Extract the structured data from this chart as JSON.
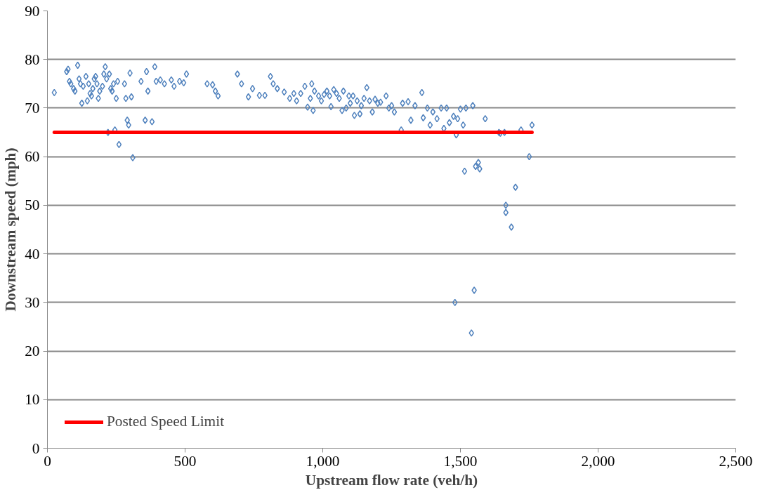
{
  "chart_data": {
    "type": "scatter",
    "xlabel": "Upstream flow rate (veh/h)",
    "ylabel": "Downstream speed (mph)",
    "xlim": [
      0,
      2500
    ],
    "ylim": [
      0,
      90
    ],
    "xticks": [
      0,
      500,
      {
        "value": 1000,
        "label": "1,000"
      },
      {
        "value": 1500,
        "label": "1,500"
      },
      {
        "value": 2000,
        "label": "2,000"
      },
      {
        "value": 2500,
        "label": "2,500"
      }
    ],
    "yticks": [
      0,
      10,
      20,
      30,
      40,
      50,
      60,
      70,
      80,
      90
    ],
    "grid": "y",
    "legend": "bottom left",
    "series": [
      {
        "marker": "diamond",
        "color": "#4f81bd",
        "x": [
          25,
          70,
          75,
          80,
          85,
          95,
          100,
          110,
          115,
          120,
          125,
          130,
          140,
          145,
          150,
          155,
          160,
          165,
          170,
          175,
          180,
          185,
          190,
          200,
          205,
          210,
          215,
          220,
          225,
          230,
          235,
          240,
          245,
          250,
          255,
          260,
          280,
          285,
          290,
          295,
          300,
          305,
          310,
          340,
          355,
          360,
          365,
          380,
          390,
          395,
          410,
          425,
          450,
          460,
          480,
          495,
          505,
          580,
          600,
          610,
          620,
          690,
          705,
          730,
          745,
          770,
          790,
          810,
          820,
          835,
          860,
          880,
          895,
          905,
          920,
          935,
          945,
          955,
          960,
          965,
          970,
          985,
          995,
          1005,
          1015,
          1025,
          1030,
          1040,
          1050,
          1060,
          1070,
          1075,
          1085,
          1095,
          1100,
          1110,
          1115,
          1125,
          1135,
          1140,
          1150,
          1160,
          1170,
          1180,
          1190,
          1200,
          1210,
          1230,
          1240,
          1250,
          1260,
          1285,
          1290,
          1310,
          1320,
          1335,
          1360,
          1365,
          1380,
          1390,
          1400,
          1415,
          1430,
          1440,
          1450,
          1460,
          1475,
          1480,
          1485,
          1490,
          1500,
          1510,
          1515,
          1520,
          1540,
          1545,
          1550,
          1555,
          1565,
          1570,
          1590,
          1640,
          1645,
          1660,
          1665,
          1665,
          1685,
          1700,
          1720,
          1750,
          1760
        ],
        "values": [
          73.2,
          77.5,
          78,
          75.5,
          75,
          74,
          73.5,
          78.8,
          76,
          75,
          71,
          74.5,
          76.5,
          71.5,
          75,
          73,
          72.5,
          74,
          76,
          76.5,
          75,
          72,
          73.5,
          74.5,
          77,
          78.5,
          76,
          65,
          77,
          74,
          73.5,
          75,
          65.5,
          72,
          75.5,
          62.5,
          75,
          72,
          67.5,
          66.5,
          77.2,
          72.3,
          59.8,
          75.5,
          67.5,
          77.5,
          73.5,
          67.2,
          78.5,
          75.5,
          75.8,
          75,
          75.8,
          74.5,
          75.5,
          75.2,
          77,
          75,
          74.8,
          73.5,
          72.5,
          77,
          75,
          72.3,
          74,
          72.6,
          72.6,
          76.5,
          75,
          74,
          73.3,
          72,
          73,
          71.5,
          73,
          74.5,
          70.2,
          72,
          75,
          69.5,
          73.5,
          72.5,
          71.5,
          72.8,
          73.5,
          72.5,
          70.3,
          73.8,
          73,
          72,
          69.5,
          73.5,
          70,
          72.5,
          71,
          72.5,
          68.5,
          71.5,
          68.8,
          70.5,
          72,
          74.2,
          71.5,
          69.2,
          71.8,
          71,
          71.2,
          72.5,
          70,
          70.5,
          69.2,
          65.5,
          71,
          71.3,
          67.5,
          70.5,
          73.2,
          68,
          70,
          66.5,
          69.2,
          67.8,
          70,
          65.8,
          70,
          67,
          68.3,
          30,
          64.5,
          67.8,
          69.8,
          66.5,
          57,
          70,
          23.7,
          70.5,
          32.5,
          58,
          58.8,
          57.5,
          67.8,
          65,
          64.8,
          65,
          50,
          48.5,
          45.5,
          53.7,
          65.5,
          60,
          66.5
        ]
      },
      {
        "type": "line",
        "name": "Posted Speed Limit",
        "color": "#ff0000",
        "x": [
          25,
          1760
        ],
        "values": [
          65,
          65
        ]
      }
    ]
  }
}
